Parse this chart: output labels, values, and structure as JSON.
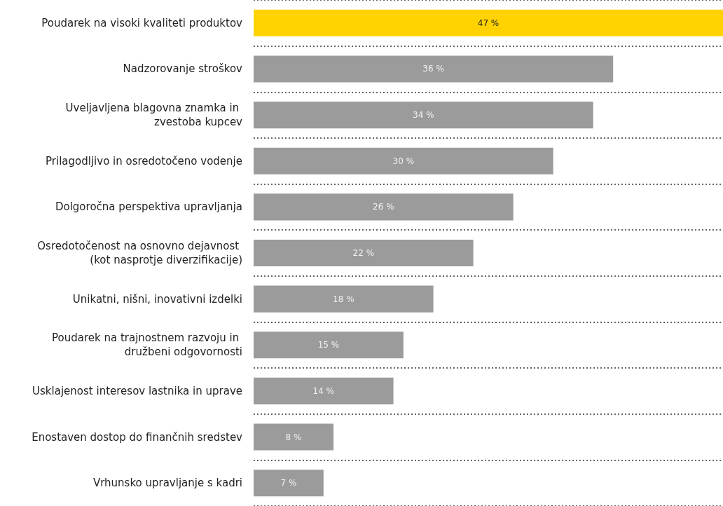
{
  "chart_data": {
    "type": "bar",
    "orientation": "horizontal",
    "categories": [
      "Poudarek na visoki kvaliteti produktov",
      "Nadzorovanje stroškov",
      "Uveljavljena blagovna znamka in zvestoba kupcev",
      "Prilagodljivo in osredotočeno vodenje",
      "Dolgoročna perspektiva upravljanja",
      "Osredotočenost na osnovno dejavnost (kot nasprotje diverzifikacije)",
      "Unikatni, nišni, inovativni izdelki",
      "Poudarek na trajnostnem razvoju in družbeni odgovornosti",
      "Usklajenost interesov lastnika in uprave",
      "Enostaven dostop do finančnih sredstev",
      "Vrhunsko upravljanje s kadri"
    ],
    "values": [
      47,
      36,
      34,
      30,
      26,
      22,
      18,
      15,
      14,
      8,
      7
    ],
    "colors": [
      "#ffd200",
      "#9b9b9b",
      "#9b9b9b",
      "#9b9b9b",
      "#9b9b9b",
      "#9b9b9b",
      "#9b9b9b",
      "#9b9b9b",
      "#9b9b9b",
      "#9b9b9b",
      "#9b9b9b"
    ],
    "value_labels": [
      "47 %",
      "36 %",
      "34 %",
      "30 %",
      "26 %",
      "22 %",
      "18 %",
      "15 %",
      "14 %",
      "8 %",
      "7 %"
    ],
    "grid": "y"
  }
}
